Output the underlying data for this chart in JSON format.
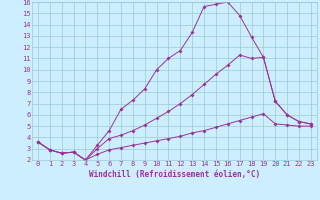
{
  "xlabel": "Windchill (Refroidissement éolien,°C)",
  "bg_color": "#cceeff",
  "line_color": "#993399",
  "grid_color": "#99cccc",
  "xlim": [
    -0.5,
    23.5
  ],
  "ylim": [
    2,
    16
  ],
  "xticks": [
    0,
    1,
    2,
    3,
    4,
    5,
    6,
    7,
    8,
    9,
    10,
    11,
    12,
    13,
    14,
    15,
    16,
    17,
    18,
    19,
    20,
    21,
    22,
    23
  ],
  "yticks": [
    2,
    3,
    4,
    5,
    6,
    7,
    8,
    9,
    10,
    11,
    12,
    13,
    14,
    15,
    16
  ],
  "line1_x": [
    0,
    1,
    2,
    3,
    4,
    5,
    6,
    7,
    8,
    9,
    10,
    11,
    12,
    13,
    14,
    15,
    16,
    17,
    18,
    19,
    20,
    21,
    22,
    23
  ],
  "line1_y": [
    3.6,
    2.9,
    2.6,
    2.7,
    2.0,
    3.3,
    4.6,
    6.5,
    7.3,
    8.3,
    10.0,
    11.0,
    11.7,
    13.3,
    15.6,
    15.8,
    16.0,
    14.8,
    12.9,
    11.1,
    7.2,
    6.0,
    5.4,
    5.2
  ],
  "line2_x": [
    0,
    1,
    2,
    3,
    4,
    5,
    6,
    7,
    8,
    9,
    10,
    11,
    12,
    13,
    14,
    15,
    16,
    17,
    18,
    19,
    20,
    21,
    22,
    23
  ],
  "line2_y": [
    3.6,
    2.9,
    2.6,
    2.7,
    2.0,
    3.0,
    3.9,
    4.2,
    4.6,
    5.1,
    5.7,
    6.3,
    7.0,
    7.8,
    8.7,
    9.6,
    10.4,
    11.3,
    11.0,
    11.1,
    7.2,
    6.0,
    5.4,
    5.2
  ],
  "line3_x": [
    0,
    1,
    2,
    3,
    4,
    5,
    6,
    7,
    8,
    9,
    10,
    11,
    12,
    13,
    14,
    15,
    16,
    17,
    18,
    19,
    20,
    21,
    22,
    23
  ],
  "line3_y": [
    3.6,
    2.9,
    2.6,
    2.7,
    2.0,
    2.5,
    2.9,
    3.1,
    3.3,
    3.5,
    3.7,
    3.9,
    4.1,
    4.4,
    4.6,
    4.9,
    5.2,
    5.5,
    5.8,
    6.1,
    5.2,
    5.1,
    5.0,
    5.0
  ],
  "xlabel_fontsize": 5.5,
  "tick_fontsize": 5.0,
  "marker_size": 2.0
}
